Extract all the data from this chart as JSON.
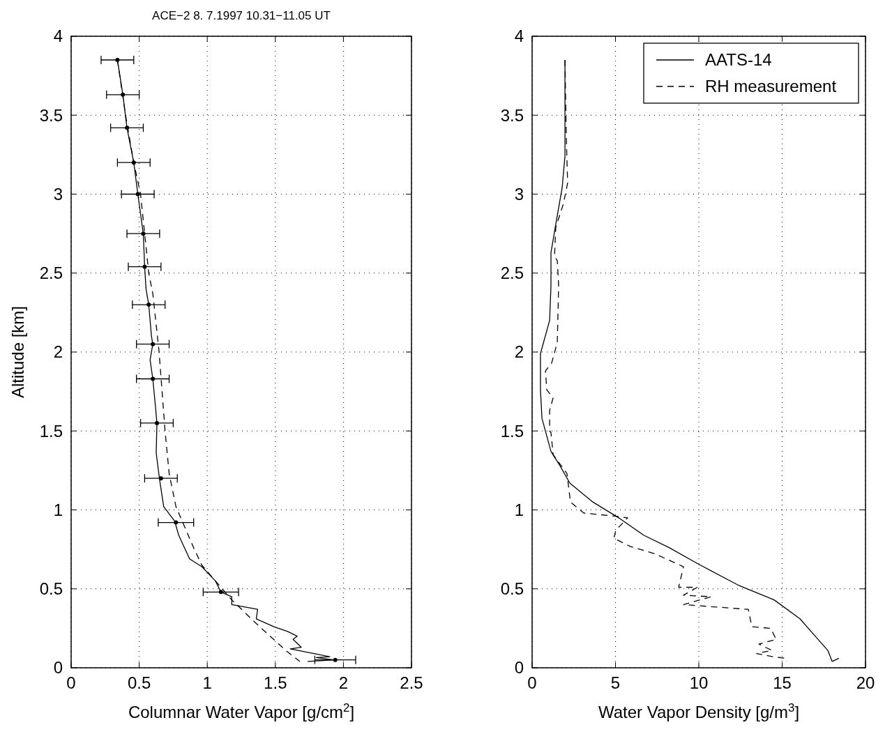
{
  "chart_data": [
    {
      "type": "line",
      "title": "ACE−2  8. 7.1997 10.31−11.05 UT",
      "xlabel": "Columnar Water Vapor [g/cm$^{2}$]",
      "ylabel": "Altitude [km]",
      "xlim": [
        0,
        2.5
      ],
      "ylim": [
        0,
        4
      ],
      "xticks": [
        0,
        0.5,
        1,
        1.5,
        2,
        2.5
      ],
      "yticks": [
        0,
        0.5,
        1,
        1.5,
        2,
        2.5,
        3,
        3.5,
        4
      ],
      "grid": true,
      "legend": false,
      "series": [
        {
          "color": "#000000",
          "line_style": "solid",
          "x": [
            0.34,
            0.38,
            0.41,
            0.46,
            0.49,
            0.53,
            0.54,
            0.55,
            0.57,
            0.59,
            0.6,
            0.58,
            0.6,
            0.62,
            0.63,
            0.625,
            0.65,
            0.68,
            0.76,
            0.79,
            0.87,
            0.96,
            1.06,
            1.1,
            1.18,
            1.18,
            1.37,
            1.36,
            1.49,
            1.59,
            1.66,
            1.63,
            1.69,
            1.61,
            1.9,
            1.8,
            1.93,
            1.74,
            1.94
          ],
          "values": [
            3.85,
            3.63,
            3.42,
            3.2,
            3.0,
            2.75,
            2.54,
            2.4,
            2.3,
            2.1,
            2.05,
            1.95,
            1.83,
            1.65,
            1.55,
            1.36,
            1.19,
            1.02,
            0.93,
            0.84,
            0.69,
            0.64,
            0.55,
            0.48,
            0.45,
            0.4,
            0.37,
            0.31,
            0.26,
            0.23,
            0.2,
            0.18,
            0.13,
            0.12,
            0.07,
            0.065,
            0.05,
            0.04,
            0.05
          ]
        },
        {
          "color": "#000000",
          "line_style": "dashed",
          "x": [
            0.34,
            0.4,
            0.46,
            0.51,
            0.54,
            0.57,
            0.6,
            0.645,
            0.69,
            0.72,
            0.77,
            0.9,
            0.96,
            1.18,
            1.36,
            1.59,
            1.68
          ],
          "values": [
            3.85,
            3.5,
            3.2,
            3.0,
            2.75,
            2.5,
            2.37,
            2.01,
            1.5,
            1.23,
            1.02,
            0.76,
            0.65,
            0.43,
            0.28,
            0.1,
            0.04
          ]
        },
        {
          "type": "scatter",
          "color": "#000000",
          "marker": "circle",
          "x": [
            0.34,
            0.38,
            0.41,
            0.46,
            0.49,
            0.53,
            0.54,
            0.57,
            0.6,
            0.6,
            0.63,
            0.66,
            0.77,
            1.1,
            1.94
          ],
          "values": [
            3.85,
            3.63,
            3.42,
            3.2,
            3.0,
            2.75,
            2.54,
            2.3,
            2.05,
            1.83,
            1.55,
            1.2,
            0.92,
            0.48,
            0.05
          ],
          "xerrors": [
            0.12,
            0.12,
            0.12,
            0.12,
            0.12,
            0.12,
            0.12,
            0.12,
            0.12,
            0.12,
            0.12,
            0.12,
            0.13,
            0.13,
            0.15
          ]
        }
      ]
    },
    {
      "type": "line",
      "xlabel": "Water Vapor Density [g/m$^{3}$]",
      "xlim": [
        0,
        20
      ],
      "ylim": [
        0,
        4
      ],
      "xticks": [
        0,
        5,
        10,
        15,
        20
      ],
      "yticks": [
        0,
        0.5,
        1,
        1.5,
        2,
        2.5,
        3,
        3.5,
        4
      ],
      "grid": true,
      "legend": "top right",
      "series": [
        {
          "name": "AATS-14",
          "color": "#000000",
          "line_style": "solid",
          "x": [
            1.97,
            1.97,
            1.8,
            1.42,
            1.13,
            1.13,
            1.05,
            0.5,
            0.5,
            0.59,
            1.13,
            1.67,
            2.26,
            3.64,
            5.19,
            6.69,
            8.24,
            9.92,
            12.43,
            14.52,
            16.07,
            16.9,
            17.74,
            18.0,
            18.4
          ],
          "values": [
            3.85,
            3.24,
            3.04,
            2.81,
            2.63,
            2.42,
            2.2,
            1.99,
            1.76,
            1.58,
            1.37,
            1.28,
            1.17,
            1.05,
            0.95,
            0.84,
            0.76,
            0.66,
            0.52,
            0.43,
            0.31,
            0.21,
            0.11,
            0.04,
            0.06
          ]
        },
        {
          "name": "RH measurement",
          "color": "#000000",
          "line_style": "dashed",
          "x": [
            1.97,
            2.05,
            2.13,
            1.88,
            1.42,
            1.34,
            1.51,
            1.59,
            1.51,
            1.17,
            0.8,
            0.88,
            1.26,
            1.05,
            1.05,
            1.13,
            1.26,
            2.09,
            2.3,
            3.1,
            5.02,
            5.73,
            5.02,
            4.9,
            5.86,
            7.41,
            9.08,
            8.79,
            9.92,
            9.08,
            10.75,
            9.08,
            12.97,
            13.18,
            14.31,
            14.64,
            13.6,
            14.39,
            13.47,
            14.44,
            15.23,
            15.27
          ],
          "values": [
            3.85,
            3.36,
            3.07,
            2.94,
            2.79,
            2.6,
            2.58,
            2.42,
            2.06,
            1.93,
            1.88,
            1.76,
            1.71,
            1.63,
            1.5,
            1.49,
            1.35,
            1.23,
            1.05,
            0.98,
            0.96,
            0.95,
            0.87,
            0.82,
            0.77,
            0.72,
            0.64,
            0.51,
            0.51,
            0.46,
            0.45,
            0.4,
            0.37,
            0.26,
            0.25,
            0.18,
            0.15,
            0.11,
            0.09,
            0.07,
            0.06,
            0.04
          ]
        }
      ]
    }
  ]
}
